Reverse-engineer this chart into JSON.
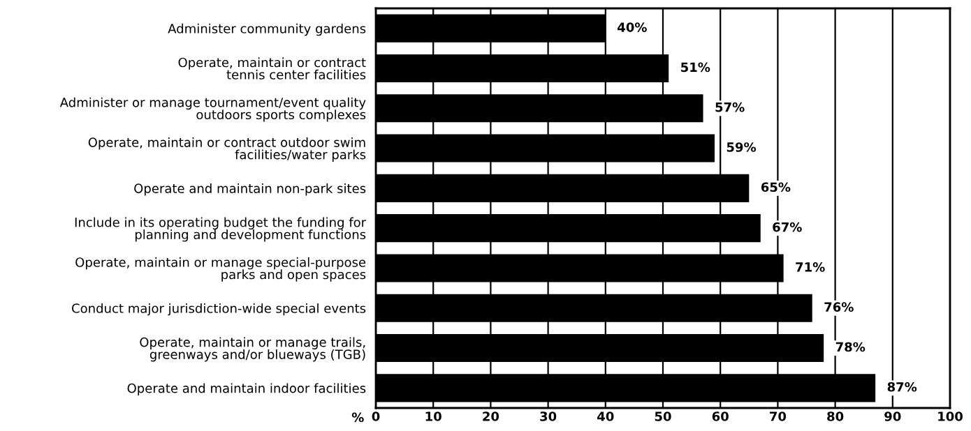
{
  "chart_data": {
    "type": "bar",
    "orientation": "horizontal",
    "categories": [
      "Administer community gardens",
      "Operate, maintain or contract\ntennis center facilities",
      "Administer or manage tournament/event quality\noutdoors sports complexes",
      "Operate, maintain or contract outdoor swim\nfacilities/water parks",
      "Operate and maintain non-park sites",
      "Include in its operating budget the funding for\nplanning and development functions",
      "Operate, maintain or manage special-purpose\nparks and open spaces",
      "Conduct major jurisdiction-wide special events",
      "Operate, maintain or manage trails,\ngreenways and/or blueways (TGB)",
      "Operate and maintain indoor facilities"
    ],
    "values": [
      40,
      51,
      57,
      59,
      65,
      67,
      71,
      76,
      78,
      87
    ],
    "value_labels": [
      "40%",
      "51%",
      "57%",
      "59%",
      "65%",
      "67%",
      "71%",
      "76%",
      "78%",
      "87%"
    ],
    "color": "#000000",
    "xlabel": "%",
    "xlim": [
      0,
      100
    ],
    "xticks": [
      0,
      10,
      20,
      30,
      40,
      50,
      60,
      70,
      80,
      90,
      100
    ],
    "grid": "x"
  }
}
